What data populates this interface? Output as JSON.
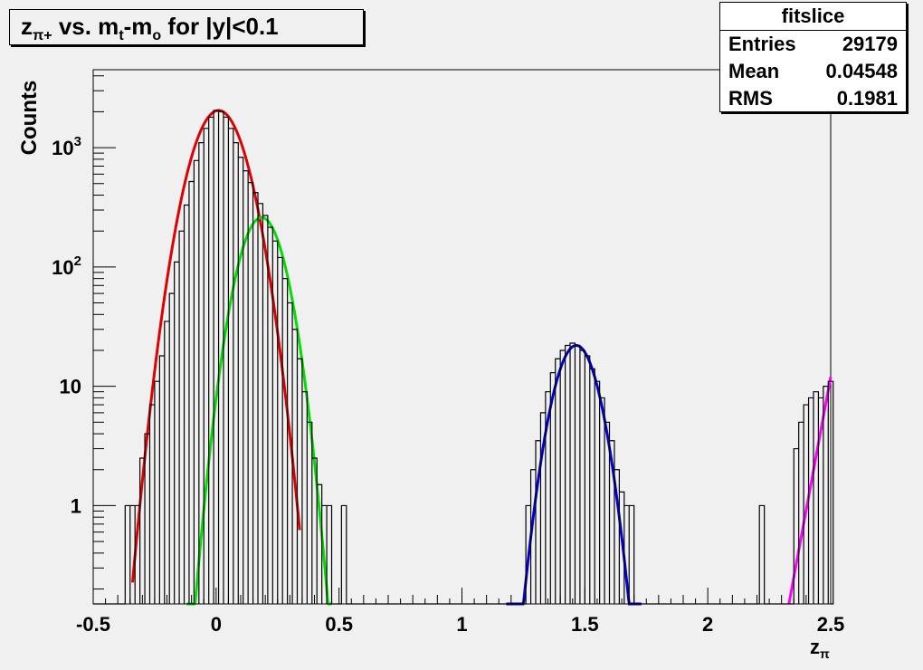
{
  "chart_data": {
    "type": "line",
    "title_parts": {
      "z": "z",
      "z_sub": "π+",
      "vs": " vs. m",
      "m_sub1": "t",
      "dash": "-m",
      "m_sub2": "o",
      "rest": " for |y|<0.1"
    },
    "ylabel": "Counts",
    "xlabel": {
      "main": "z",
      "sub": "π"
    },
    "xlim": [
      -0.5,
      2.5
    ],
    "ylim": [
      0.15,
      4500
    ],
    "yscale": "log",
    "x_ticks": [
      {
        "value": -0.5,
        "label": "-0.5"
      },
      {
        "value": 0,
        "label": "0"
      },
      {
        "value": 0.5,
        "label": "0.5"
      },
      {
        "value": 1,
        "label": "1"
      },
      {
        "value": 1.5,
        "label": "1.5"
      },
      {
        "value": 2,
        "label": "2"
      },
      {
        "value": 2.5,
        "label": "2.5"
      }
    ],
    "y_ticks": [
      {
        "value": 1,
        "label": "1"
      },
      {
        "value": 10,
        "label": "10"
      },
      {
        "value": 100,
        "label": "10",
        "exp": "2"
      },
      {
        "value": 1000,
        "label": "10",
        "exp": "3"
      }
    ],
    "histogram": {
      "name": "fitslice",
      "color": "#000000",
      "points": [
        [
          -0.36,
          1
        ],
        [
          -0.34,
          1
        ],
        [
          -0.32,
          1
        ],
        [
          -0.3,
          2.5
        ],
        [
          -0.28,
          4
        ],
        [
          -0.26,
          7
        ],
        [
          -0.24,
          11
        ],
        [
          -0.22,
          18
        ],
        [
          -0.2,
          35
        ],
        [
          -0.18,
          60
        ],
        [
          -0.16,
          110
        ],
        [
          -0.14,
          200
        ],
        [
          -0.12,
          330
        ],
        [
          -0.1,
          520
        ],
        [
          -0.08,
          780
        ],
        [
          -0.06,
          1100
        ],
        [
          -0.04,
          1450
        ],
        [
          -0.02,
          1800
        ],
        [
          0.0,
          2050
        ],
        [
          0.02,
          2000
        ],
        [
          0.04,
          1800
        ],
        [
          0.06,
          1450
        ],
        [
          0.08,
          1100
        ],
        [
          0.1,
          830
        ],
        [
          0.12,
          640
        ],
        [
          0.14,
          510
        ],
        [
          0.16,
          420
        ],
        [
          0.18,
          340
        ],
        [
          0.2,
          270
        ],
        [
          0.22,
          215
        ],
        [
          0.24,
          165
        ],
        [
          0.26,
          120
        ],
        [
          0.28,
          80
        ],
        [
          0.3,
          50
        ],
        [
          0.32,
          30
        ],
        [
          0.34,
          17
        ],
        [
          0.36,
          9
        ],
        [
          0.38,
          5
        ],
        [
          0.4,
          2.5
        ],
        [
          0.42,
          1.5
        ],
        [
          0.44,
          1
        ],
        [
          0.46,
          1
        ],
        [
          0.52,
          1
        ],
        [
          1.27,
          1
        ],
        [
          1.29,
          2
        ],
        [
          1.31,
          3.5
        ],
        [
          1.33,
          6
        ],
        [
          1.35,
          9
        ],
        [
          1.37,
          13
        ],
        [
          1.39,
          17
        ],
        [
          1.41,
          20
        ],
        [
          1.43,
          22
        ],
        [
          1.45,
          23
        ],
        [
          1.47,
          22
        ],
        [
          1.49,
          20
        ],
        [
          1.51,
          18
        ],
        [
          1.53,
          14
        ],
        [
          1.55,
          11
        ],
        [
          1.57,
          8
        ],
        [
          1.59,
          5
        ],
        [
          1.61,
          3.5
        ],
        [
          1.63,
          2
        ],
        [
          1.65,
          1.3
        ],
        [
          1.67,
          1
        ],
        [
          1.69,
          1
        ],
        [
          2.22,
          1
        ],
        [
          2.36,
          3
        ],
        [
          2.38,
          5
        ],
        [
          2.4,
          7
        ],
        [
          2.42,
          8
        ],
        [
          2.44,
          9
        ],
        [
          2.46,
          8
        ],
        [
          2.48,
          10
        ],
        [
          2.5,
          11
        ]
      ]
    },
    "fits": [
      {
        "color": "#e00000",
        "mean": 0.01,
        "sigma": 0.082,
        "amp": 2050,
        "range": [
          -0.34,
          0.34
        ]
      },
      {
        "color": "#00e000",
        "mean": 0.185,
        "sigma": 0.07,
        "amp": 260,
        "range": [
          -0.12,
          0.47
        ]
      },
      {
        "color": "#0000d0",
        "mean": 1.465,
        "sigma": 0.068,
        "amp": 22,
        "range": [
          1.18,
          1.73
        ]
      },
      {
        "color": "#ff00ff",
        "line": [
          [
            2.33,
            0.15
          ],
          [
            2.5,
            12
          ]
        ],
        "range": [
          2.33,
          2.5
        ]
      }
    ],
    "stats": {
      "name": "fitslice",
      "rows": [
        {
          "label": "Entries",
          "value": "29179"
        },
        {
          "label": "Mean",
          "value": "0.04548"
        },
        {
          "label": "RMS",
          "value": "0.1981"
        }
      ]
    }
  }
}
